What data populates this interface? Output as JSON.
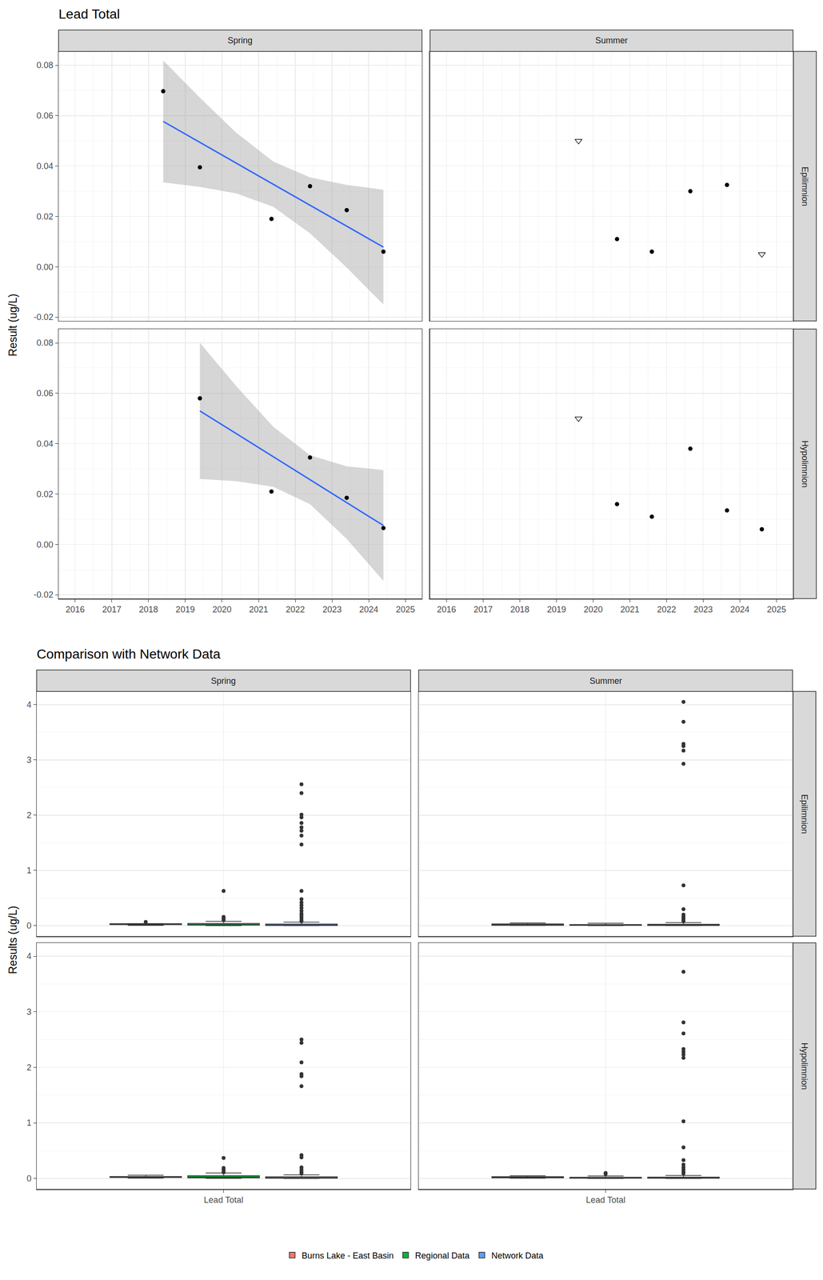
{
  "chart_data": [
    {
      "type": "scatter",
      "title": "Lead Total",
      "y_label": "Result (ug/L)",
      "columns": [
        "Spring",
        "Summer"
      ],
      "rows": [
        "Epilimnion",
        "Hypolimnion"
      ],
      "xlim": [
        2015.55,
        2025.45
      ],
      "xticks": [
        2016,
        2017,
        2018,
        2019,
        2020,
        2021,
        2022,
        2023,
        2024,
        2025
      ],
      "ylim": [
        -0.0215,
        0.0855
      ],
      "yticks": [
        {
          "value": -0.02,
          "label": "-0.02"
        },
        {
          "value": 0,
          "label": "0.00"
        },
        {
          "value": 0.02,
          "label": "0.02"
        },
        {
          "value": 0.04,
          "label": "0.04"
        },
        {
          "value": 0.06,
          "label": "0.06"
        },
        {
          "value": 0.08,
          "label": "0.08"
        }
      ],
      "grid": true,
      "panels": [
        {
          "column": "Spring",
          "row": "Epilimnion",
          "series": [
            {
              "marker": "circle",
              "color": "black",
              "x": [
                2018.4,
                2019.4,
                2021.35,
                2022.4,
                2023.4,
                2024.4
              ],
              "values": [
                0.0697,
                0.0395,
                0.019,
                0.032,
                0.0225,
                0.006
              ]
            }
          ],
          "trend": {
            "color": "#3366FF",
            "x": [
              2018.4,
              2019.4,
              2020.4,
              2021.4,
              2022.4,
              2023.4,
              2024.4
            ],
            "values": [
              0.0577,
              0.0494,
              0.0411,
              0.0328,
              0.0244,
              0.0161,
              0.0078
            ],
            "lower": [
              0.0335,
              0.0317,
              0.0291,
              0.0238,
              0.0133,
              -0.0003,
              -0.015
            ],
            "upper": [
              0.0819,
              0.0671,
              0.0531,
              0.0418,
              0.0355,
              0.0325,
              0.0306
            ]
          }
        },
        {
          "column": "Summer",
          "row": "Epilimnion",
          "series": [
            {
              "marker": "circle",
              "color": "black",
              "x": [
                2020.65,
                2021.6,
                2022.65,
                2023.65
              ],
              "values": [
                0.011,
                0.006,
                0.03,
                0.0325
              ]
            },
            {
              "marker": "triangle-down-open",
              "color": "black",
              "x": [
                2019.6,
                2024.6
              ],
              "values": [
                0.05,
                0.005
              ]
            }
          ]
        },
        {
          "column": "Spring",
          "row": "Hypolimnion",
          "series": [
            {
              "marker": "circle",
              "color": "black",
              "x": [
                2019.4,
                2021.35,
                2022.4,
                2023.4,
                2024.4
              ],
              "values": [
                0.058,
                0.021,
                0.0345,
                0.0185,
                0.0065
              ]
            }
          ],
          "trend": {
            "color": "#3366FF",
            "x": [
              2019.4,
              2020.4,
              2021.4,
              2022.4,
              2023.4,
              2024.4
            ],
            "values": [
              0.053,
              0.0439,
              0.0348,
              0.0257,
              0.0166,
              0.0075
            ],
            "lower": [
              0.026,
              0.0251,
              0.0229,
              0.016,
              0.0022,
              -0.0145
            ],
            "upper": [
              0.08,
              0.0627,
              0.0467,
              0.0354,
              0.031,
              0.0295
            ]
          }
        },
        {
          "column": "Summer",
          "row": "Hypolimnion",
          "series": [
            {
              "marker": "circle",
              "color": "black",
              "x": [
                2020.65,
                2021.6,
                2022.65,
                2023.65,
                2024.6
              ],
              "values": [
                0.016,
                0.011,
                0.038,
                0.0135,
                0.006
              ]
            },
            {
              "marker": "triangle-down-open",
              "color": "black",
              "x": [
                2019.6
              ],
              "values": [
                0.05
              ]
            }
          ]
        }
      ]
    },
    {
      "type": "box",
      "title": "Comparison with Network Data",
      "y_label": "Results (ug/L)",
      "columns": [
        "Spring",
        "Summer"
      ],
      "rows": [
        "Epilimnion",
        "Hypolimnion"
      ],
      "categories": [
        "Lead Total"
      ],
      "ylim": [
        -0.19,
        4.24
      ],
      "yticks": [
        0,
        1,
        2,
        3,
        4
      ],
      "grid": true,
      "legend": "bottom",
      "series": [
        {
          "name": "Burns Lake - East Basin",
          "color": "#F8766D"
        },
        {
          "name": "Regional Data",
          "color": "#00BA38"
        },
        {
          "name": "Network Data",
          "color": "#619CFF"
        }
      ],
      "panels": [
        {
          "column": "Spring",
          "row": "Epilimnion",
          "boxes": [
            {
              "q1": 0.0199,
              "median": 0.0273,
              "q3": 0.0376,
              "lowerfence": 0.006,
              "upperfence": 0.0395,
              "outliers": [
                0.0697
              ]
            },
            {
              "q1": 0.01,
              "median": 0.02,
              "q3": 0.04,
              "lowerfence": 0.002,
              "upperfence": 0.08,
              "outliers": [
                0.63,
                0.16,
                0.14,
                0.12,
                0.1
              ]
            },
            {
              "q1": 0.005,
              "median": 0.012,
              "q3": 0.03,
              "lowerfence": 0.001,
              "upperfence": 0.065,
              "outliers": [
                2.56,
                2.4,
                2.01,
                1.96,
                1.86,
                1.78,
                1.72,
                1.63,
                1.47,
                0.63,
                0.48,
                0.42,
                0.37,
                0.32,
                0.27,
                0.22,
                0.18,
                0.14,
                0.1,
                0.08
              ]
            }
          ]
        },
        {
          "column": "Summer",
          "row": "Epilimnion",
          "boxes": [
            {
              "q1": 0.0073,
              "median": 0.0205,
              "q3": 0.0319,
              "lowerfence": 0.005,
              "upperfence": 0.05,
              "outliers": []
            },
            {
              "q1": 0.006,
              "median": 0.011,
              "q3": 0.022,
              "lowerfence": 0.001,
              "upperfence": 0.045,
              "outliers": []
            },
            {
              "q1": 0.005,
              "median": 0.01,
              "q3": 0.025,
              "lowerfence": 0.001,
              "upperfence": 0.055,
              "outliers": [
                4.05,
                3.69,
                3.29,
                3.25,
                3.17,
                2.93,
                0.73,
                0.3,
                0.2,
                0.17,
                0.14,
                0.12,
                0.1,
                0.08
              ]
            }
          ]
        },
        {
          "column": "Spring",
          "row": "Hypolimnion",
          "boxes": [
            {
              "q1": 0.0185,
              "median": 0.021,
              "q3": 0.0345,
              "lowerfence": 0.0065,
              "upperfence": 0.058,
              "outliers": []
            },
            {
              "q1": 0.012,
              "median": 0.025,
              "q3": 0.05,
              "lowerfence": 0.002,
              "upperfence": 0.1,
              "outliers": [
                0.37,
                0.19,
                0.16,
                0.13,
                0.11
              ]
            },
            {
              "q1": 0.005,
              "median": 0.012,
              "q3": 0.03,
              "lowerfence": 0.001,
              "upperfence": 0.065,
              "outliers": [
                2.5,
                2.44,
                2.09,
                1.88,
                1.84,
                1.66,
                0.42,
                0.38,
                0.2,
                0.16,
                0.12,
                0.09
              ]
            }
          ]
        },
        {
          "column": "Summer",
          "row": "Hypolimnion",
          "boxes": [
            {
              "q1": 0.0123,
              "median": 0.0148,
              "q3": 0.0325,
              "lowerfence": 0.006,
              "upperfence": 0.05,
              "outliers": []
            },
            {
              "q1": 0.006,
              "median": 0.011,
              "q3": 0.022,
              "lowerfence": 0.001,
              "upperfence": 0.045,
              "outliers": [
                0.1,
                0.08
              ]
            },
            {
              "q1": 0.005,
              "median": 0.01,
              "q3": 0.025,
              "lowerfence": 0.001,
              "upperfence": 0.055,
              "outliers": [
                3.72,
                2.81,
                2.61,
                2.33,
                2.28,
                2.23,
                2.17,
                1.03,
                0.56,
                0.33,
                0.25,
                0.2,
                0.16,
                0.12,
                0.09
              ]
            }
          ]
        }
      ]
    }
  ]
}
